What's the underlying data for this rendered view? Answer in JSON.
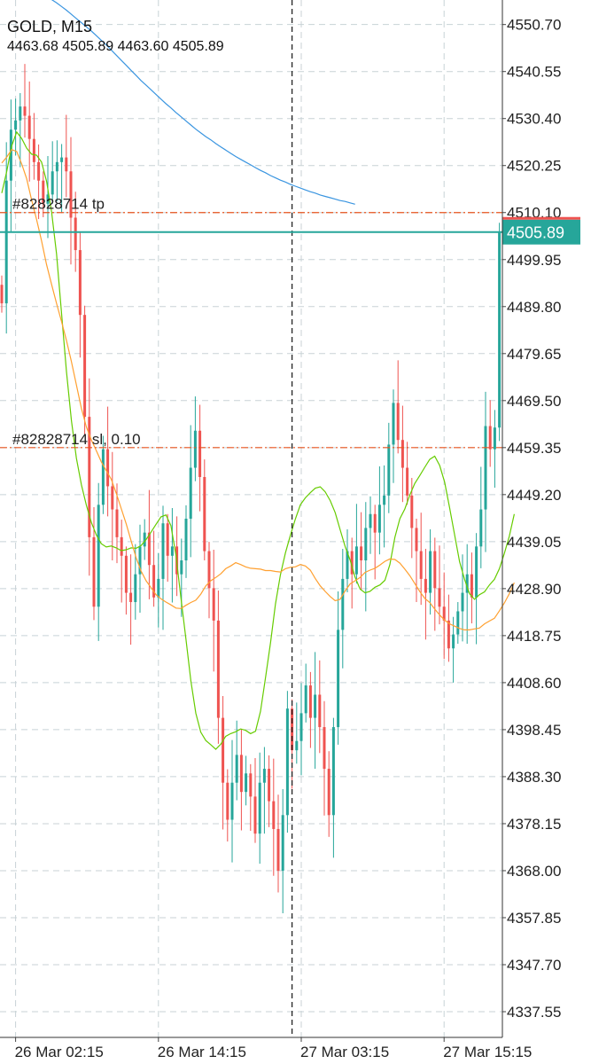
{
  "header": {
    "symbol_timeframe": "GOLD, M15",
    "ohlc": "4463.68 4505.89 4463.60 4505.89"
  },
  "colors": {
    "bull": "#26a69a",
    "bear": "#ef5350",
    "ma_fast": "#66cc00",
    "ma_mid": "#ffa030",
    "ma_slow": "#3a95e0",
    "order_line": "#e8541e",
    "grid": "#c8d2d6",
    "price_label_bg": "#26a69a"
  },
  "chart_data": {
    "type": "candlestick",
    "symbol": "GOLD",
    "timeframe": "M15",
    "ylim": [
      4332.0,
      4556.0
    ],
    "y_ticks": [
      "4550.70",
      "4540.55",
      "4530.40",
      "4520.25",
      "4510.10",
      "4499.95",
      "4489.80",
      "4479.65",
      "4469.50",
      "4459.35",
      "4449.20",
      "4439.05",
      "4428.90",
      "4418.75",
      "4408.60",
      "4398.45",
      "4388.30",
      "4378.15",
      "4368.00",
      "4357.85",
      "4347.70",
      "4337.55"
    ],
    "x_ticks": [
      "26 Mar 02:15",
      "26 Mar 14:15",
      "27 Mar 03:15",
      "27 Mar 15:15"
    ],
    "x_tick_index": [
      3,
      34,
      65,
      96
    ],
    "last_price": "4505.89",
    "order_lines": [
      {
        "label": "#82828714 tp",
        "price": 4510.1
      },
      {
        "label": "#82828714 sl, 0.10",
        "price": 4459.35
      }
    ],
    "crosshair_index": 63,
    "closes": [
      4490.5,
      4517,
      4528,
      4530,
      4533,
      4531,
      4526,
      4521,
      4517,
      4512,
      4514,
      4519,
      4521,
      4522,
      4519,
      4509,
      4502,
      4488,
      4466,
      4440,
      4425,
      4447,
      4459,
      4451,
      4446,
      4440,
      4436,
      4428,
      4426,
      4432,
      4438,
      4441,
      4434,
      4427,
      4431,
      4443,
      4436,
      4438,
      4432,
      4435,
      4444,
      4455,
      4463,
      4453,
      4437,
      4429,
      4422,
      4401,
      4387,
      4379,
      4387,
      4393,
      4385,
      4389,
      4384,
      4376,
      4387,
      4390,
      4383,
      4377,
      4368,
      4380,
      4403,
      4394,
      4396,
      4402,
      4408,
      4401,
      4406,
      4399,
      4390,
      4380,
      4399,
      4420,
      4431,
      4437,
      4432,
      4438,
      4435,
      4442,
      4445,
      4441,
      4447,
      4449,
      4460,
      4469,
      4461,
      4455,
      4449,
      4442,
      4437,
      4431,
      4428,
      4437,
      4429,
      4425,
      4422,
      4416,
      4419,
      4424,
      4428,
      4432,
      4427,
      4438,
      4446,
      4464,
      4459,
      4463.68,
      4505.89
    ],
    "series": [
      {
        "name": "ma_fast",
        "values": [
          4514.3,
          4519.0,
          4524.5,
          4527.5,
          4526.1,
          4524.0,
          4522.7,
          4522.5,
          4521.0,
          4516.9,
          4510.3,
          4501.2,
          4488.5,
          4475.8,
          4465.2,
          4457.1,
          4451.3,
          4446.9,
          4443.2,
          4440.5,
          4438.6,
          4437.9,
          4438.1,
          4437.7,
          4437.1,
          4437.3,
          4437.7,
          4437.6,
          4438.2,
          4439.5,
          4441.1,
          4442.8,
          4444.4,
          4444.8,
          4442.5,
          4436.1,
          4426.9,
          4418.1,
          4409.0,
          4402.0,
          4397.9,
          4396.1,
          4395.2,
          4394.2,
          4395.3,
          4397.0,
          4397.6,
          4398.0,
          4398.6,
          4398.3,
          4397.6,
          4398.1,
          4402.4,
          4409.6,
          4417.2,
          4425.6,
          4431.9,
          4436.6,
          4440.4,
          4443.9,
          4447.0,
          4448.5,
          4449.6,
          4450.6,
          4450.9,
          4449.8,
          4447.9,
          4445.3,
          4441.6,
          4438.0,
          4435.1,
          4431.4,
          4428.8,
          4428.0,
          4428.3,
          4429.2,
          4429.7,
          4430.7,
          4434.1,
          4440.0,
          4444.0,
          4446.1,
          4449.1,
          4451.6,
          4453.3,
          4455.1,
          4456.8,
          4457.5,
          4455.5,
          4451.9,
          4446.4,
          4440.5,
          4434.7,
          4430.9,
          4427.8,
          4426.6,
          4427.6,
          4428.2,
          4429.7,
          4430.9,
          4433.2,
          4436.5,
          4440.2,
          4445.0
        ]
      },
      {
        "name": "ma_mid",
        "values": [
          4520.8,
          4522.1,
          4523.7,
          4523.3,
          4520.6,
          4517.4,
          4512.8,
          4508.6,
          4504.0,
          4498.9,
          4494.6,
          4490.5,
          4486.6,
          4482.5,
          4477.9,
          4472.9,
          4467.8,
          4463.8,
          4461.0,
          4458.7,
          4456.3,
          4454.4,
          4452.5,
          4449.5,
          4446.2,
          4442.9,
          4439.2,
          4435.6,
          4432.7,
          4430.6,
          4429.1,
          4427.6,
          4426.7,
          4426.0,
          4425.4,
          4424.7,
          4424.6,
          4425.3,
          4425.9,
          4426.4,
          4427.7,
          4429.5,
          4430.6,
          4431.3,
          4432.1,
          4433.2,
          4433.8,
          4434.5,
          4434.1,
          4433.6,
          4433.3,
          4433.2,
          4433.1,
          4432.8,
          4432.8,
          4432.6,
          4432.5,
          4433.2,
          4433.5,
          4433.6,
          4434.1,
          4433.8,
          4432.9,
          4431.1,
          4429.5,
          4428.3,
          4427.2,
          4426.3,
          4426.6,
          4428.4,
          4429.9,
          4430.6,
          4431.3,
          4432.4,
          4432.9,
          4433.3,
          4434.0,
          4434.8,
          4435.3,
          4435.2,
          4434.4,
          4433.1,
          4431.7,
          4430.0,
          4428.3,
          4426.8,
          4425.9,
          4424.5,
          4423.2,
          4422.1,
          4421.3,
          4420.8,
          4420.3,
          4420.0,
          4420.0,
          4420.2,
          4420.4,
          4421.3,
          4421.9,
          4422.5,
          4424.1,
          4425.8,
          4427.8,
          4430.2
        ]
      },
      {
        "name": "ma_slow",
        "values": [
          4560.5,
          4560.2,
          4559.9,
          4559.6,
          4559.2,
          4558.8,
          4558.4,
          4557.9,
          4557.4,
          4556.8,
          4556.1,
          4555.4,
          4554.6,
          4553.8,
          4552.9,
          4552.0,
          4551.1,
          4550.2,
          4549.3,
          4548.3,
          4547.3,
          4546.3,
          4545.2,
          4544.1,
          4543.0,
          4541.9,
          4540.8,
          4539.7,
          4538.6,
          4537.6,
          4536.6,
          4535.6,
          4534.6,
          4533.6,
          4532.7,
          4531.7,
          4530.8,
          4529.9,
          4529.0,
          4528.1,
          4527.3,
          4526.5,
          4525.8,
          4525.0,
          4524.3,
          4523.6,
          4522.9,
          4522.2,
          4521.6,
          4521.0,
          4520.4,
          4519.8,
          4519.2,
          4518.7,
          4518.1,
          4517.6,
          4517.1,
          4516.7,
          4516.2,
          4515.8,
          4515.4,
          4515.0,
          4514.6,
          4514.3,
          4513.9,
          4513.6,
          4513.3,
          4513.0,
          4512.7,
          4512.5,
          4512.2,
          4511.9
        ]
      }
    ]
  }
}
